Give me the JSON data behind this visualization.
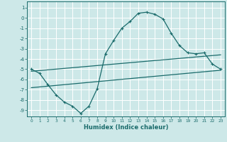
{
  "title": "",
  "xlabel": "Humidex (Indice chaleur)",
  "background_color": "#cde8e8",
  "grid_color": "#b0d4d4",
  "line_color": "#1a6b6b",
  "xlim": [
    -0.5,
    23.5
  ],
  "ylim": [
    -9.6,
    1.6
  ],
  "yticks": [
    1,
    0,
    -1,
    -2,
    -3,
    -4,
    -5,
    -6,
    -7,
    -8,
    -9
  ],
  "xticks": [
    0,
    1,
    2,
    3,
    4,
    5,
    6,
    7,
    8,
    9,
    10,
    11,
    12,
    13,
    14,
    15,
    16,
    17,
    18,
    19,
    20,
    21,
    22,
    23
  ],
  "series1_x": [
    0,
    1,
    2,
    3,
    4,
    5,
    6,
    7,
    8,
    9,
    10,
    11,
    12,
    13,
    14,
    15,
    16,
    17,
    18,
    19,
    20,
    21,
    22,
    23
  ],
  "series1_y": [
    -5.0,
    -5.4,
    -6.5,
    -7.5,
    -8.2,
    -8.6,
    -9.3,
    -8.6,
    -6.9,
    -3.5,
    -2.2,
    -1.0,
    -0.35,
    0.45,
    0.55,
    0.35,
    -0.1,
    -1.5,
    -2.7,
    -3.4,
    -3.5,
    -3.4,
    -4.5,
    -5.0
  ],
  "series2_x": [
    0,
    23
  ],
  "series2_y": [
    -5.2,
    -3.6
  ],
  "series3_x": [
    0,
    23
  ],
  "series3_y": [
    -6.8,
    -5.1
  ]
}
